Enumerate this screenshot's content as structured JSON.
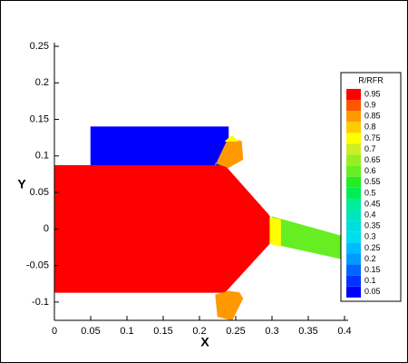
{
  "chart_data": {
    "type": "contour",
    "xlabel": "X",
    "ylabel": "Y",
    "xlim": [
      0,
      0.405
    ],
    "ylim": [
      -0.125,
      0.255
    ],
    "xticks": [
      0,
      0.05,
      0.1,
      0.15,
      0.2,
      0.25,
      0.3,
      0.35,
      0.4
    ],
    "yticks": [
      -0.1,
      -0.05,
      0,
      0.05,
      0.1,
      0.15,
      0.2,
      0.25
    ],
    "legend_title": "R/RFR",
    "levels": [
      {
        "value": 0.05,
        "color": "#0000ff"
      },
      {
        "value": 0.1,
        "color": "#0033ff"
      },
      {
        "value": 0.15,
        "color": "#0066ff"
      },
      {
        "value": 0.2,
        "color": "#0099ff"
      },
      {
        "value": 0.25,
        "color": "#00bbff"
      },
      {
        "value": 0.3,
        "color": "#00ddee"
      },
      {
        "value": 0.35,
        "color": "#00dddd"
      },
      {
        "value": 0.4,
        "color": "#00e6bb"
      },
      {
        "value": 0.45,
        "color": "#00ee99"
      },
      {
        "value": 0.5,
        "color": "#00ee55"
      },
      {
        "value": 0.55,
        "color": "#22ee22"
      },
      {
        "value": 0.6,
        "color": "#66ee22"
      },
      {
        "value": 0.65,
        "color": "#99ee22"
      },
      {
        "value": 0.7,
        "color": "#ccee22"
      },
      {
        "value": 0.75,
        "color": "#ffff00"
      },
      {
        "value": 0.8,
        "color": "#ffcc00"
      },
      {
        "value": 0.85,
        "color": "#ff9900"
      },
      {
        "value": 0.9,
        "color": "#ff5500"
      },
      {
        "value": 0.95,
        "color": "#ff0000"
      }
    ],
    "regions": [
      {
        "value": 0.05,
        "x": [
          0.05,
          0.24,
          0.24,
          0.05
        ],
        "y": [
          0.14,
          0.14,
          0.087,
          0.087
        ]
      },
      {
        "value": 0.97,
        "x": [
          0,
          0.235,
          0.295,
          0.3,
          0.3,
          0.295,
          0.235,
          0
        ],
        "y": [
          0.087,
          0.087,
          0.02,
          0.012,
          -0.015,
          -0.022,
          -0.087,
          -0.087
        ]
      },
      {
        "value": 0.62,
        "x": [
          0.3,
          0.405,
          0.405,
          0.3
        ],
        "y": [
          0.017,
          -0.012,
          -0.043,
          -0.02
        ]
      },
      {
        "value": 0.75,
        "x": [
          0.297,
          0.312,
          0.312,
          0.297
        ],
        "y": [
          0.016,
          0.013,
          -0.024,
          -0.02
        ]
      },
      {
        "value": 0.85,
        "x": [
          0.222,
          0.24,
          0.258,
          0.26,
          0.24,
          0.222
        ],
        "y": [
          0.087,
          0.125,
          0.12,
          0.095,
          0.084,
          0.09
        ]
      },
      {
        "value": 0.75,
        "x": [
          0.235,
          0.245,
          0.254
        ],
        "y": [
          0.12,
          0.128,
          0.12
        ]
      },
      {
        "value": 0.85,
        "x": [
          0.24,
          0.222,
          0.225,
          0.245,
          0.26,
          0.255
        ],
        "y": [
          -0.085,
          -0.09,
          -0.12,
          -0.125,
          -0.095,
          -0.087
        ]
      }
    ]
  }
}
